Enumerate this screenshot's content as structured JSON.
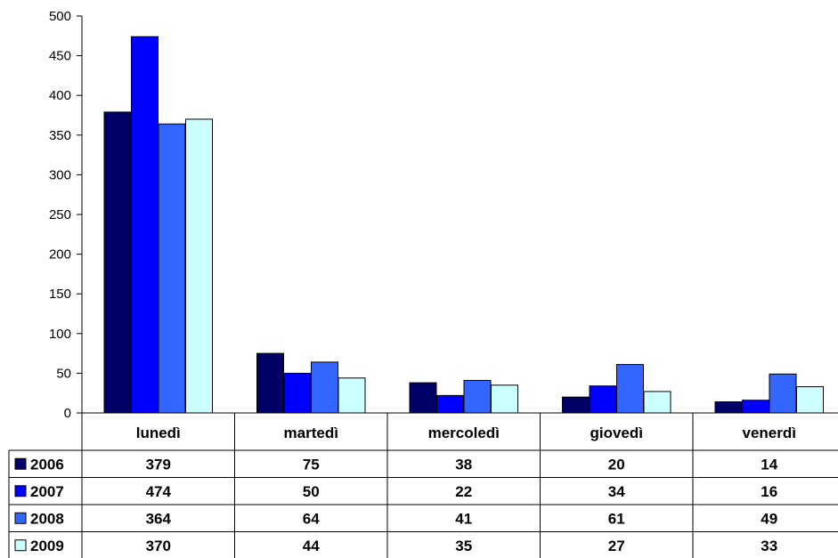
{
  "chart_data": {
    "type": "bar",
    "title": "",
    "xlabel": "",
    "ylabel": "",
    "ylim": [
      0,
      500
    ],
    "yticks": [
      0,
      50,
      100,
      150,
      200,
      250,
      300,
      350,
      400,
      450,
      500
    ],
    "grid": false,
    "legend": "data-table-left",
    "categories": [
      "lunedì",
      "martedì",
      "mercoledì",
      "giovedì",
      "venerdì"
    ],
    "series": [
      {
        "name": "2006",
        "color": "#000066",
        "values": [
          379,
          75,
          38,
          20,
          14
        ]
      },
      {
        "name": "2007",
        "color": "#0000FF",
        "values": [
          474,
          50,
          22,
          34,
          16
        ]
      },
      {
        "name": "2008",
        "color": "#3366FF",
        "values": [
          364,
          64,
          41,
          61,
          49
        ]
      },
      {
        "name": "2009",
        "color": "#CCFFFF",
        "values": [
          370,
          44,
          35,
          27,
          33
        ]
      }
    ]
  }
}
